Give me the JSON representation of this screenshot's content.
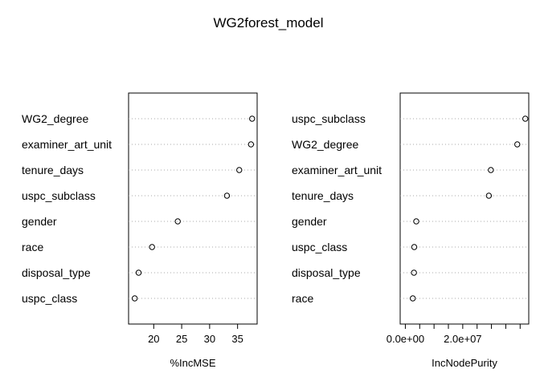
{
  "title": "WG2forest_model",
  "chart_data": [
    {
      "type": "scatter",
      "xlabel": "%IncMSE",
      "ylabel": "",
      "xlim": [
        15.5,
        38.5
      ],
      "xticks": [
        20,
        25,
        30,
        35
      ],
      "xtick_labels": [
        "20",
        "25",
        "30",
        "35"
      ],
      "grid": "dotted-horizontal",
      "categories": [
        "WG2_degree",
        "examiner_art_unit",
        "tenure_days",
        "uspc_subclass",
        "gender",
        "race",
        "disposal_type",
        "uspc_class"
      ],
      "values": [
        37.6,
        37.4,
        35.3,
        33.1,
        24.3,
        19.7,
        17.3,
        16.6
      ]
    },
    {
      "type": "scatter",
      "xlabel": "IncNodePurity",
      "ylabel": "",
      "xlim": [
        -1800000,
        43000000
      ],
      "xticks": [
        0,
        5000000,
        10000000,
        15000000,
        20000000,
        25000000,
        30000000,
        35000000,
        40000000
      ],
      "xtick_labels": [
        "0.0e+00",
        "",
        "",
        "",
        "2.0e+07",
        "",
        "",
        "",
        ""
      ],
      "grid": "dotted-horizontal",
      "categories": [
        "uspc_subclass",
        "WG2_degree",
        "examiner_art_unit",
        "tenure_days",
        "gender",
        "uspc_class",
        "disposal_type",
        "race"
      ],
      "values": [
        41800000,
        39000000,
        29800000,
        29100000,
        3800000,
        3100000,
        3000000,
        2600000
      ]
    }
  ]
}
